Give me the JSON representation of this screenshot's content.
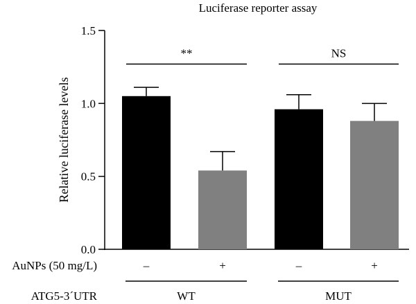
{
  "chart_data": {
    "type": "bar",
    "title": "Luciferase reporter assay",
    "xlabel": "",
    "ylabel": "Relative luciferase levels",
    "ylim": [
      0,
      1.5
    ],
    "yticks": [
      "0.0",
      "0.5",
      "1.0",
      "1.5"
    ],
    "ytick_values": [
      0,
      0.5,
      1.0,
      1.5
    ],
    "grid": false,
    "legend": "none",
    "bars": [
      {
        "group": "WT",
        "aunps": "–",
        "value": 1.05,
        "error": 0.06,
        "color": "#000000"
      },
      {
        "group": "WT",
        "aunps": "+",
        "value": 0.54,
        "error": 0.13,
        "color": "#808080"
      },
      {
        "group": "MUT",
        "aunps": "–",
        "value": 0.96,
        "error": 0.1,
        "color": "#000000"
      },
      {
        "group": "MUT",
        "aunps": "+",
        "value": 0.88,
        "error": 0.12,
        "color": "#808080"
      }
    ],
    "treatment_row": {
      "label": "AuNPs (50 mg/L)",
      "values": [
        "–",
        "+",
        "–",
        "+"
      ]
    },
    "group_row": {
      "label": "ATG5-3´UTR",
      "groups": [
        "WT",
        "MUT"
      ]
    },
    "significance": [
      {
        "group": "WT",
        "label": "**",
        "y": 1.27
      },
      {
        "group": "MUT",
        "label": "NS",
        "y": 1.27
      }
    ]
  }
}
